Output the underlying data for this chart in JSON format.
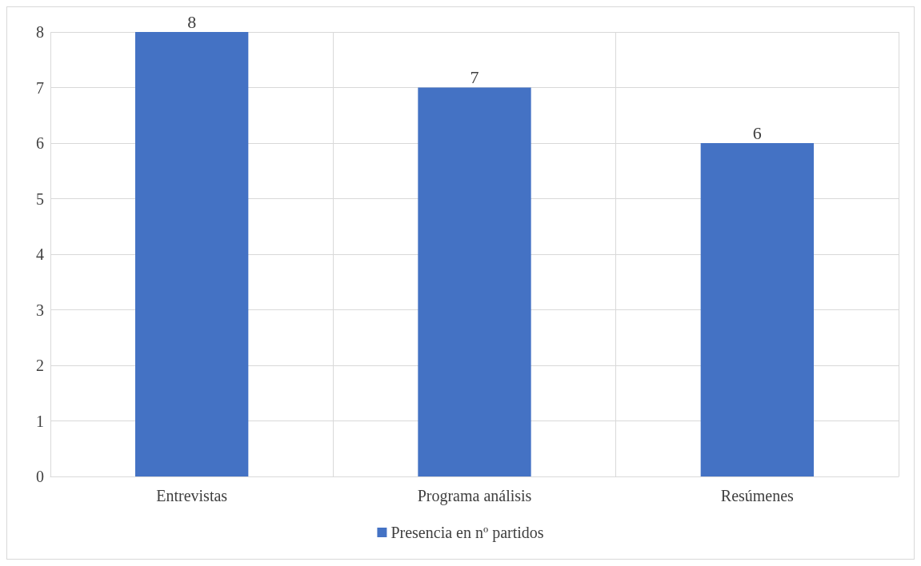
{
  "chart_data": {
    "type": "bar",
    "categories": [
      "Entrevistas",
      "Programa análisis",
      "Resúmenes"
    ],
    "series": [
      {
        "name": "Presencia en nº partidos",
        "color": "#4472c4",
        "values": [
          8,
          7,
          6
        ]
      }
    ],
    "ylim": [
      0,
      8
    ],
    "yticks": [
      0,
      1,
      2,
      3,
      4,
      5,
      6,
      7,
      8
    ],
    "grid": true,
    "legend": "bottom",
    "data_labels": true
  }
}
